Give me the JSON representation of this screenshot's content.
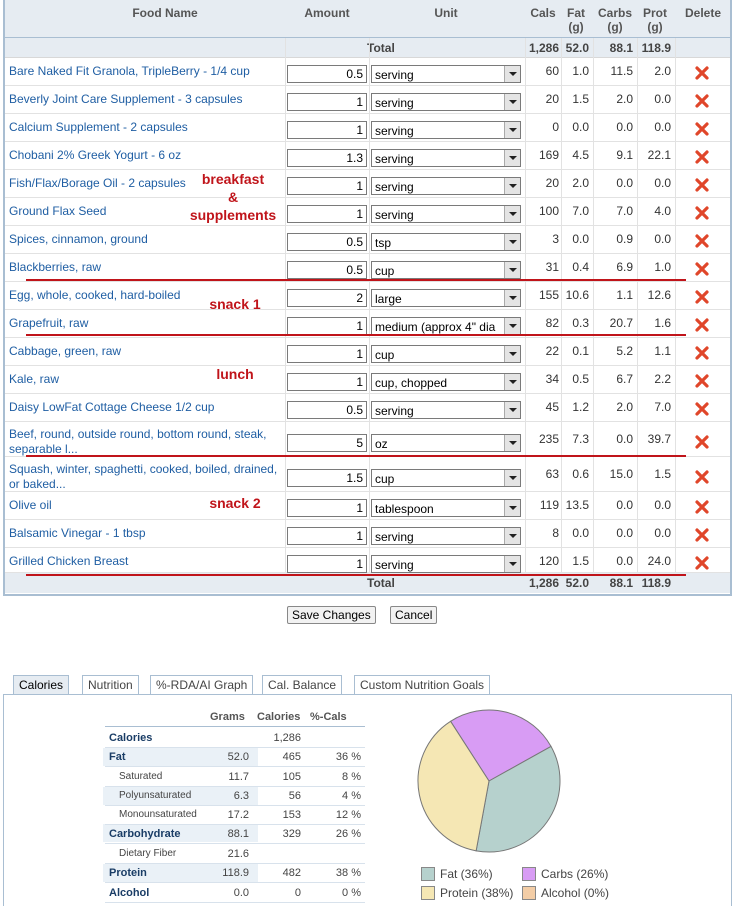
{
  "headers": {
    "food": "Food Name",
    "amount": "Amount",
    "unit": "Unit",
    "cals": "Cals",
    "fat": "Fat\n(g)",
    "carbs": "Carbs\n(g)",
    "prot": "Prot\n(g)",
    "delete": "Delete"
  },
  "totals": {
    "label": "Total",
    "cals": "1,286",
    "fat": "52.0",
    "carbs": "88.1",
    "prot": "118.9"
  },
  "foods": [
    {
      "name": "Bare Naked Fit Granola, TripleBerry - 1/4 cup",
      "amount": "0.5",
      "unit": "serving",
      "cals": "60",
      "fat": "1.0",
      "carbs": "11.5",
      "prot": "2.0"
    },
    {
      "name": "Beverly Joint Care Supplement - 3 capsules",
      "amount": "1",
      "unit": "serving",
      "cals": "20",
      "fat": "1.5",
      "carbs": "2.0",
      "prot": "0.0"
    },
    {
      "name": "Calcium Supplement - 2 capsules",
      "amount": "1",
      "unit": "serving",
      "cals": "0",
      "fat": "0.0",
      "carbs": "0.0",
      "prot": "0.0"
    },
    {
      "name": "Chobani 2% Greek Yogurt - 6 oz",
      "amount": "1.3",
      "unit": "serving",
      "cals": "169",
      "fat": "4.5",
      "carbs": "9.1",
      "prot": "22.1"
    },
    {
      "name": "Fish/Flax/Borage Oil - 2 capsules",
      "amount": "1",
      "unit": "serving",
      "cals": "20",
      "fat": "2.0",
      "carbs": "0.0",
      "prot": "0.0"
    },
    {
      "name": "Ground Flax Seed",
      "amount": "1",
      "unit": "serving",
      "cals": "100",
      "fat": "7.0",
      "carbs": "7.0",
      "prot": "4.0"
    },
    {
      "name": "Spices, cinnamon, ground",
      "amount": "0.5",
      "unit": "tsp",
      "cals": "3",
      "fat": "0.0",
      "carbs": "0.9",
      "prot": "0.0"
    },
    {
      "name": "Blackberries, raw",
      "amount": "0.5",
      "unit": "cup",
      "cals": "31",
      "fat": "0.4",
      "carbs": "6.9",
      "prot": "1.0"
    },
    {
      "name": "Egg, whole, cooked, hard-boiled",
      "amount": "2",
      "unit": "large",
      "cals": "155",
      "fat": "10.6",
      "carbs": "1.1",
      "prot": "12.6"
    },
    {
      "name": "Grapefruit, raw",
      "amount": "1",
      "unit": "medium (approx 4\" dia",
      "cals": "82",
      "fat": "0.3",
      "carbs": "20.7",
      "prot": "1.6"
    },
    {
      "name": "Cabbage, green, raw",
      "amount": "1",
      "unit": "cup",
      "cals": "22",
      "fat": "0.1",
      "carbs": "5.2",
      "prot": "1.1"
    },
    {
      "name": "Kale, raw",
      "amount": "1",
      "unit": "cup, chopped",
      "cals": "34",
      "fat": "0.5",
      "carbs": "6.7",
      "prot": "2.2"
    },
    {
      "name": "Daisy LowFat Cottage Cheese 1/2 cup",
      "amount": "0.5",
      "unit": "serving",
      "cals": "45",
      "fat": "1.2",
      "carbs": "2.0",
      "prot": "7.0"
    },
    {
      "name": "Beef, round, outside round, bottom round, steak, separable l...",
      "amount": "5",
      "unit": "oz",
      "cals": "235",
      "fat": "7.3",
      "carbs": "0.0",
      "prot": "39.7"
    },
    {
      "name": "Squash, winter, spaghetti, cooked, boiled, drained, or baked...",
      "amount": "1.5",
      "unit": "cup",
      "cals": "63",
      "fat": "0.6",
      "carbs": "15.0",
      "prot": "1.5"
    },
    {
      "name": "Olive oil",
      "amount": "1",
      "unit": "tablespoon",
      "cals": "119",
      "fat": "13.5",
      "carbs": "0.0",
      "prot": "0.0"
    },
    {
      "name": "Balsamic Vinegar - 1 tbsp",
      "amount": "1",
      "unit": "serving",
      "cals": "8",
      "fat": "0.0",
      "carbs": "0.0",
      "prot": "0.0"
    },
    {
      "name": "Grilled Chicken Breast",
      "amount": "1",
      "unit": "serving",
      "cals": "120",
      "fat": "1.5",
      "carbs": "0.0",
      "prot": "24.0"
    }
  ],
  "annotations": {
    "breakfast": "breakfast\n&\nsupplements",
    "snack1": "snack 1",
    "lunch": "lunch",
    "snack2": "snack 2"
  },
  "buttons": {
    "save": "Save Changes",
    "cancel": "Cancel"
  },
  "tabs": [
    "Calories",
    "Nutrition",
    "%-RDA/AI Graph",
    "Cal. Balance",
    "Custom Nutrition Goals"
  ],
  "nutrition": {
    "headers": [
      "Grams",
      "Calories",
      "%-Cals"
    ],
    "rows": [
      {
        "label": "Calories",
        "grams": "",
        "cals": "1,286",
        "pct": ""
      },
      {
        "label": "Fat",
        "grams": "52.0",
        "cals": "465",
        "pct": "36 %"
      },
      {
        "label": "Saturated",
        "grams": "11.7",
        "cals": "105",
        "pct": "8 %"
      },
      {
        "label": "Polyunsaturated",
        "grams": "6.3",
        "cals": "56",
        "pct": "4 %"
      },
      {
        "label": "Monounsaturated",
        "grams": "17.2",
        "cals": "153",
        "pct": "12 %"
      },
      {
        "label": "Carbohydrate",
        "grams": "88.1",
        "cals": "329",
        "pct": "26 %"
      },
      {
        "label": "Dietary Fiber",
        "grams": "21.6",
        "cals": "",
        "pct": ""
      },
      {
        "label": "Protein",
        "grams": "118.9",
        "cals": "482",
        "pct": "38 %"
      },
      {
        "label": "Alcohol",
        "grams": "0.0",
        "cals": "0",
        "pct": "0 %"
      }
    ]
  },
  "chart_data": {
    "type": "pie",
    "slices": [
      {
        "name": "Fat",
        "pct": 36,
        "label": "Fat  (36%)",
        "color": "#b6d1cd"
      },
      {
        "name": "Carbs",
        "pct": 26,
        "label": "Carbs  (26%)",
        "color": "#d89cf4"
      },
      {
        "name": "Protein",
        "pct": 38,
        "label": "Protein  (38%)",
        "color": "#f5e7b4"
      },
      {
        "name": "Alcohol",
        "pct": 0,
        "label": "Alcohol  (0%)",
        "color": "#f3cda6"
      }
    ]
  },
  "colors": {
    "header_bg": "#e6ecf2",
    "link": "#1f5ea3",
    "annotation": "#c0141a",
    "delete": "#e0462a"
  }
}
